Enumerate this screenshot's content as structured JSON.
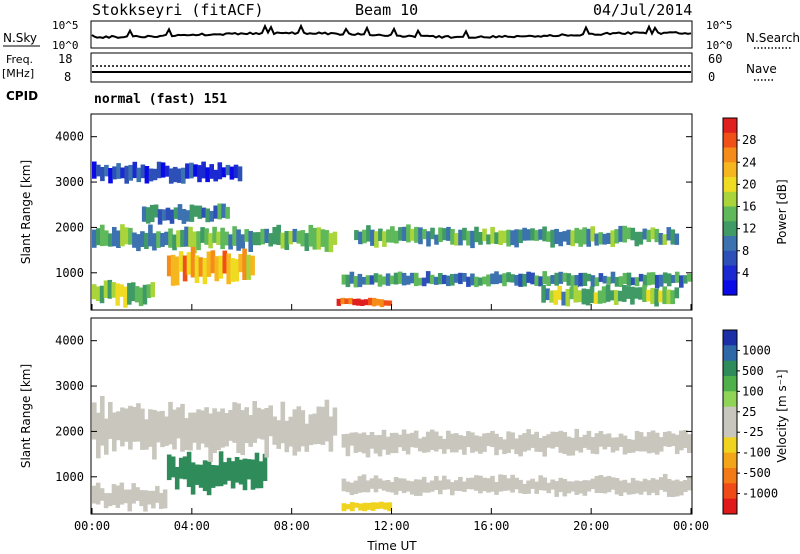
{
  "header": {
    "station": "Stokkseyri (fitACF)",
    "beam": "Beam 10",
    "date": "04/Jul/2014"
  },
  "noise_panel": {
    "left_label": "N.Sky",
    "right_label": "N.Search",
    "left_ticks": [
      "10^5",
      "10^0"
    ],
    "right_ticks": [
      "10^5",
      "10^0"
    ]
  },
  "freq_panel": {
    "left_label_line1": "Freq.",
    "left_label_line2": "[MHz]",
    "right_label": "Nave",
    "left_ticks": [
      "18",
      "8"
    ],
    "right_ticks": [
      "60",
      "0"
    ]
  },
  "cpid_panel": {
    "label": "CPID",
    "mode": "normal (fast) 151"
  },
  "power_panel": {
    "ylabel": "Slant Range [km]",
    "cbar_label": "Power [dB]",
    "cbar_ticks": [
      "28",
      "24",
      "20",
      "16",
      "12",
      "8",
      "4"
    ],
    "cbar_colors": [
      "#e0201e",
      "#f04f18",
      "#f58c1a",
      "#f6b61f",
      "#efdc22",
      "#a9d43a",
      "#5fb85a",
      "#3f9a65",
      "#3c72b0",
      "#2c4fb8",
      "#1a2ad0",
      "#0a0ae8"
    ]
  },
  "velocity_panel": {
    "ylabel": "Slant Range [km]",
    "cbar_label": "Velocity [m s⁻¹]",
    "cbar_ticks": [
      "1000",
      "500",
      "100",
      "25",
      "-25",
      "-100",
      "-500",
      "-1000"
    ],
    "cbar_colors": [
      "#1c2fa6",
      "#2f68a8",
      "#2f8c5a",
      "#4eb04a",
      "#8fd456",
      "#c8c6bd",
      "#c8c6bd",
      "#efd31f",
      "#f3a51a",
      "#f27a17",
      "#ef4a18",
      "#e01a1a"
    ]
  },
  "x_axis": {
    "label": "Time UT",
    "ticks": [
      "00:00",
      "04:00",
      "08:00",
      "12:00",
      "16:00",
      "20:00",
      "00:00"
    ]
  },
  "chart_data": {
    "type": "heatmap",
    "xlabel": "Time UT",
    "ylabel": "Slant Range [km]",
    "xlim": [
      0,
      24
    ],
    "ylim": [
      180,
      4500
    ],
    "y_ticks": [
      1000,
      2000,
      3000,
      4000
    ],
    "power_bands": [
      {
        "t0": 0.0,
        "t1": 9.8,
        "r_lo": 1500,
        "r_hi": 2000,
        "power_db": 14
      },
      {
        "t0": 2.0,
        "t1": 5.5,
        "r_lo": 2100,
        "r_hi": 2500,
        "power_db": 12
      },
      {
        "t0": 3.0,
        "t1": 6.5,
        "r_lo": 800,
        "r_hi": 1500,
        "power_db": 24
      },
      {
        "t0": 0.0,
        "t1": 2.5,
        "r_lo": 300,
        "r_hi": 800,
        "power_db": 18
      },
      {
        "t0": 9.8,
        "t1": 12.0,
        "r_lo": 250,
        "r_hi": 450,
        "power_db": 30
      },
      {
        "t0": 10.5,
        "t1": 23.5,
        "r_lo": 1600,
        "r_hi": 2000,
        "power_db": 14
      },
      {
        "t0": 10.0,
        "t1": 24.0,
        "r_lo": 700,
        "r_hi": 1000,
        "power_db": 12
      },
      {
        "t0": 18.0,
        "t1": 23.5,
        "r_lo": 300,
        "r_hi": 700,
        "power_db": 16
      },
      {
        "t0": 0.0,
        "t1": 6.0,
        "r_lo": 3000,
        "r_hi": 3400,
        "power_db": 6
      }
    ],
    "velocity_bands": [
      {
        "t0": 3.0,
        "t1": 7.0,
        "r_lo": 700,
        "r_hi": 1500,
        "velocity": 150
      },
      {
        "t0": 0.0,
        "t1": 9.8,
        "r_lo": 1500,
        "r_hi": 2600,
        "velocity": 0
      },
      {
        "t0": 10.0,
        "t1": 24.0,
        "r_lo": 1500,
        "r_hi": 2000,
        "velocity": 0
      },
      {
        "t0": 10.0,
        "t1": 24.0,
        "r_lo": 600,
        "r_hi": 1000,
        "velocity": 0
      },
      {
        "t0": 0.0,
        "t1": 3.0,
        "r_lo": 300,
        "r_hi": 800,
        "velocity": 0
      },
      {
        "t0": 10.0,
        "t1": 12.0,
        "r_lo": 250,
        "r_hi": 450,
        "velocity": -60
      }
    ],
    "freq_mhz": 10,
    "nave": 16
  }
}
